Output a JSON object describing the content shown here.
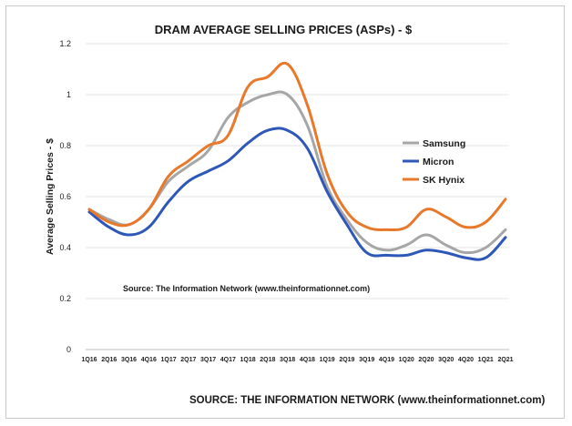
{
  "chart_data": {
    "type": "line",
    "title": "DRAM AVERAGE SELLING PRICES (ASPs) - $",
    "xlabel": "",
    "ylabel": "Average Selling Prices - $",
    "ylim": [
      0,
      1.2
    ],
    "yticks": [
      "0",
      "0.2",
      "0.4",
      "0.6",
      "0.8",
      "1",
      "1.2"
    ],
    "categories": [
      "1Q16",
      "2Q16",
      "3Q16",
      "4Q16",
      "1Q17",
      "2Q17",
      "3Q17",
      "4Q17",
      "1Q18",
      "2Q18",
      "3Q18",
      "4Q18",
      "1Q19",
      "2Q19",
      "3Q19",
      "4Q19",
      "1Q20",
      "2Q20",
      "3Q20",
      "4Q20",
      "1Q21",
      "2Q21"
    ],
    "grid": "horizontal",
    "legend": "right",
    "series": [
      {
        "name": "Samsung",
        "color": "#a6a6a6",
        "values": [
          0.55,
          0.51,
          0.49,
          0.55,
          0.66,
          0.72,
          0.78,
          0.91,
          0.97,
          1.0,
          1.0,
          0.88,
          0.64,
          0.51,
          0.42,
          0.39,
          0.41,
          0.45,
          0.41,
          0.38,
          0.4,
          0.47
        ]
      },
      {
        "name": "Micron",
        "color": "#2e57b8",
        "values": [
          0.54,
          0.48,
          0.45,
          0.48,
          0.58,
          0.66,
          0.7,
          0.74,
          0.81,
          0.86,
          0.86,
          0.79,
          0.62,
          0.49,
          0.38,
          0.37,
          0.37,
          0.39,
          0.38,
          0.36,
          0.36,
          0.44
        ]
      },
      {
        "name": "SK Hynix",
        "color": "#e8782a",
        "values": [
          0.55,
          0.5,
          0.49,
          0.55,
          0.68,
          0.74,
          0.8,
          0.84,
          1.03,
          1.07,
          1.12,
          0.96,
          0.69,
          0.54,
          0.48,
          0.47,
          0.48,
          0.55,
          0.52,
          0.48,
          0.5,
          0.59
        ]
      }
    ],
    "annotation": "Source: The Information Network (www.theinformationnet.com)"
  },
  "footer": "SOURCE: THE INFORMATION NETWORK (www.theinformationnet.com)"
}
